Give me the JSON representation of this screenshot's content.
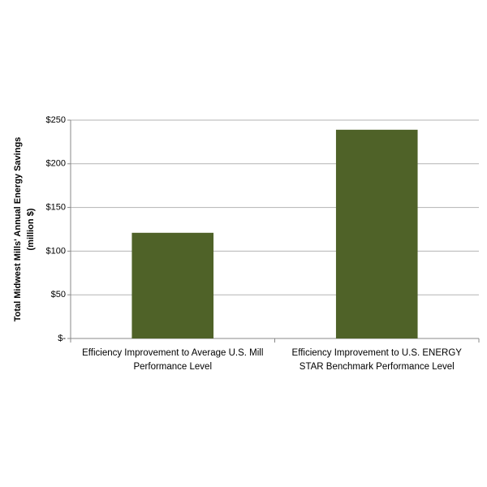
{
  "chart_data": {
    "type": "bar",
    "ylabel": [
      "Total Midwest Mills' Annual Energy Savings",
      "(million $)"
    ],
    "categories": [
      "Efficiency Improvement to Average U.S. Mill Performance Level",
      "Efficiency Improvement to U.S. ENERGY STAR Benchmark Performance Level"
    ],
    "values": [
      121,
      239
    ],
    "color": "#4f6228",
    "ylim": [
      0,
      250
    ],
    "yticks": [
      {
        "value": 0,
        "label": "$-"
      },
      {
        "value": 50,
        "label": "$50"
      },
      {
        "value": 100,
        "label": "$100"
      },
      {
        "value": 150,
        "label": "$150"
      },
      {
        "value": 200,
        "label": "$200"
      },
      {
        "value": 250,
        "label": "$250"
      }
    ],
    "grid": true
  }
}
